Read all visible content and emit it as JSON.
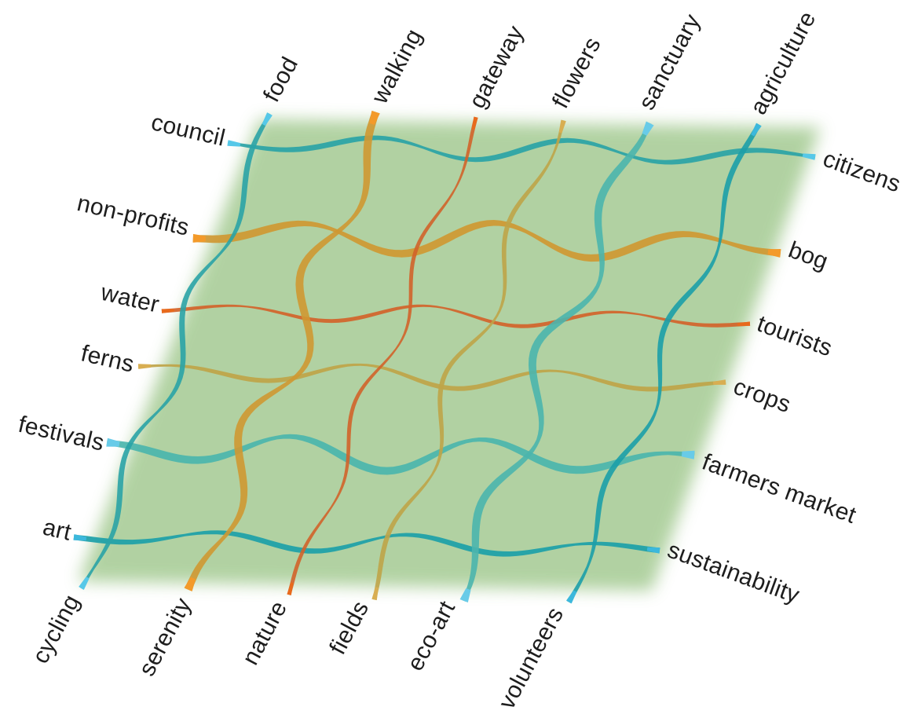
{
  "colors": {
    "background": "#ffffff",
    "field": "#a9cd98",
    "teal": "#2aa3a6",
    "teal_light": "#56c8e8",
    "orange": "#f39a2a",
    "amber": "#cf9832",
    "red_orange": "#e2692a",
    "olive_gold": "#c6a449",
    "label_text": "#1d1d1d"
  },
  "threads": {
    "vertical": [
      {
        "top": "food",
        "bottom": "cycling",
        "color": "#2aa3a6",
        "end_color": "#56c8e8",
        "weight": 1.0
      },
      {
        "top": "walking",
        "bottom": "serenity",
        "color": "#cf9832",
        "end_color": "#f39a2a",
        "weight": 1.3
      },
      {
        "top": "gateway",
        "bottom": "nature",
        "color": "#d2632a",
        "end_color": "#e86a1c",
        "weight": 0.75
      },
      {
        "top": "flowers",
        "bottom": "fields",
        "color": "#bfa448",
        "end_color": "#d8ae52",
        "weight": 0.8
      },
      {
        "top": "sanctuary",
        "bottom": "eco-art",
        "color": "#4bb5ad",
        "end_color": "#68cbe8",
        "weight": 1.25
      },
      {
        "top": "agriculture",
        "bottom": "volunteers",
        "color": "#1c9fa8",
        "end_color": "#3cb8dc",
        "weight": 1.0
      }
    ],
    "horizontal": [
      {
        "left": "council",
        "right": "citizens",
        "color": "#2aa3a6",
        "end_color": "#56c8e8",
        "weight": 1.0
      },
      {
        "left": "non-profits",
        "right": "bog",
        "color": "#cf9832",
        "end_color": "#f39a2a",
        "weight": 1.3
      },
      {
        "left": "water",
        "right": "tourists",
        "color": "#d2632a",
        "end_color": "#e86a1c",
        "weight": 0.75
      },
      {
        "left": "ferns",
        "right": "crops",
        "color": "#bfa448",
        "end_color": "#d8ae52",
        "weight": 0.8
      },
      {
        "left": "festivals",
        "right": "farmers market",
        "color": "#4bb5ad",
        "end_color": "#68cbe8",
        "weight": 1.25
      },
      {
        "left": "art",
        "right": "sustainability",
        "color": "#1c9fa8",
        "end_color": "#3cb8dc",
        "weight": 1.0
      }
    ]
  }
}
